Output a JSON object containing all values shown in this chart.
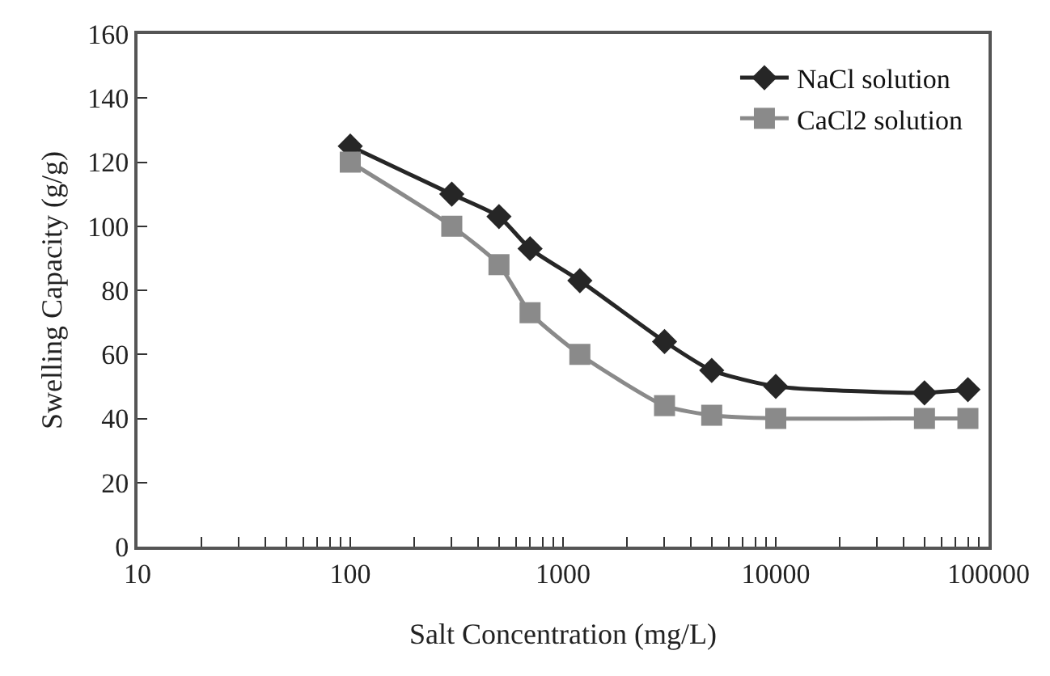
{
  "chart_data": {
    "type": "line",
    "xlabel": "Salt Concentration (mg/L)",
    "ylabel": "Swelling Capacity (g/g)",
    "x": [
      100,
      300,
      500,
      700,
      1200,
      3000,
      5000,
      10000,
      50000,
      80000
    ],
    "series": [
      {
        "name": "NaCl solution",
        "color": "#262626",
        "marker": "diamond",
        "values": [
          125,
          110,
          103,
          93,
          83,
          64,
          55,
          50,
          48,
          49
        ]
      },
      {
        "name": "CaCl2 solution",
        "color": "#8a8a8a",
        "marker": "square",
        "values": [
          120,
          100,
          88,
          73,
          60,
          44,
          41,
          40,
          40,
          40
        ]
      }
    ],
    "log": "x",
    "xlim": [
      10,
      100000
    ],
    "xticks": [
      10,
      {
        "value": 20,
        "label": null
      },
      {
        "value": 30,
        "label": null
      },
      {
        "value": 40,
        "label": null
      },
      {
        "value": 50,
        "label": null
      },
      {
        "value": 60,
        "label": null
      },
      {
        "value": 70,
        "label": null
      },
      {
        "value": 80,
        "label": null
      },
      {
        "value": 90,
        "label": null
      },
      100,
      {
        "value": 200,
        "label": null
      },
      {
        "value": 300,
        "label": null
      },
      {
        "value": 400,
        "label": null
      },
      {
        "value": 500,
        "label": null
      },
      {
        "value": 600,
        "label": null
      },
      {
        "value": 700,
        "label": null
      },
      {
        "value": 800,
        "label": null
      },
      {
        "value": 900,
        "label": null
      },
      1000,
      {
        "value": 2000,
        "label": null
      },
      {
        "value": 3000,
        "label": null
      },
      {
        "value": 4000,
        "label": null
      },
      {
        "value": 5000,
        "label": null
      },
      {
        "value": 6000,
        "label": null
      },
      {
        "value": 7000,
        "label": null
      },
      {
        "value": 8000,
        "label": null
      },
      {
        "value": 9000,
        "label": null
      },
      10000,
      {
        "value": 20000,
        "label": null
      },
      {
        "value": 30000,
        "label": null
      },
      {
        "value": 40000,
        "label": null
      },
      {
        "value": 50000,
        "label": null
      },
      {
        "value": 60000,
        "label": null
      },
      {
        "value": 70000,
        "label": null
      },
      {
        "value": 80000,
        "label": null
      },
      {
        "value": 90000,
        "label": null
      },
      100000
    ],
    "ylim": [
      0,
      160
    ],
    "yticks": [
      0,
      20,
      40,
      60,
      80,
      100,
      120,
      140,
      160
    ],
    "grid": false,
    "legend": "top right",
    "line_style": "solid"
  }
}
